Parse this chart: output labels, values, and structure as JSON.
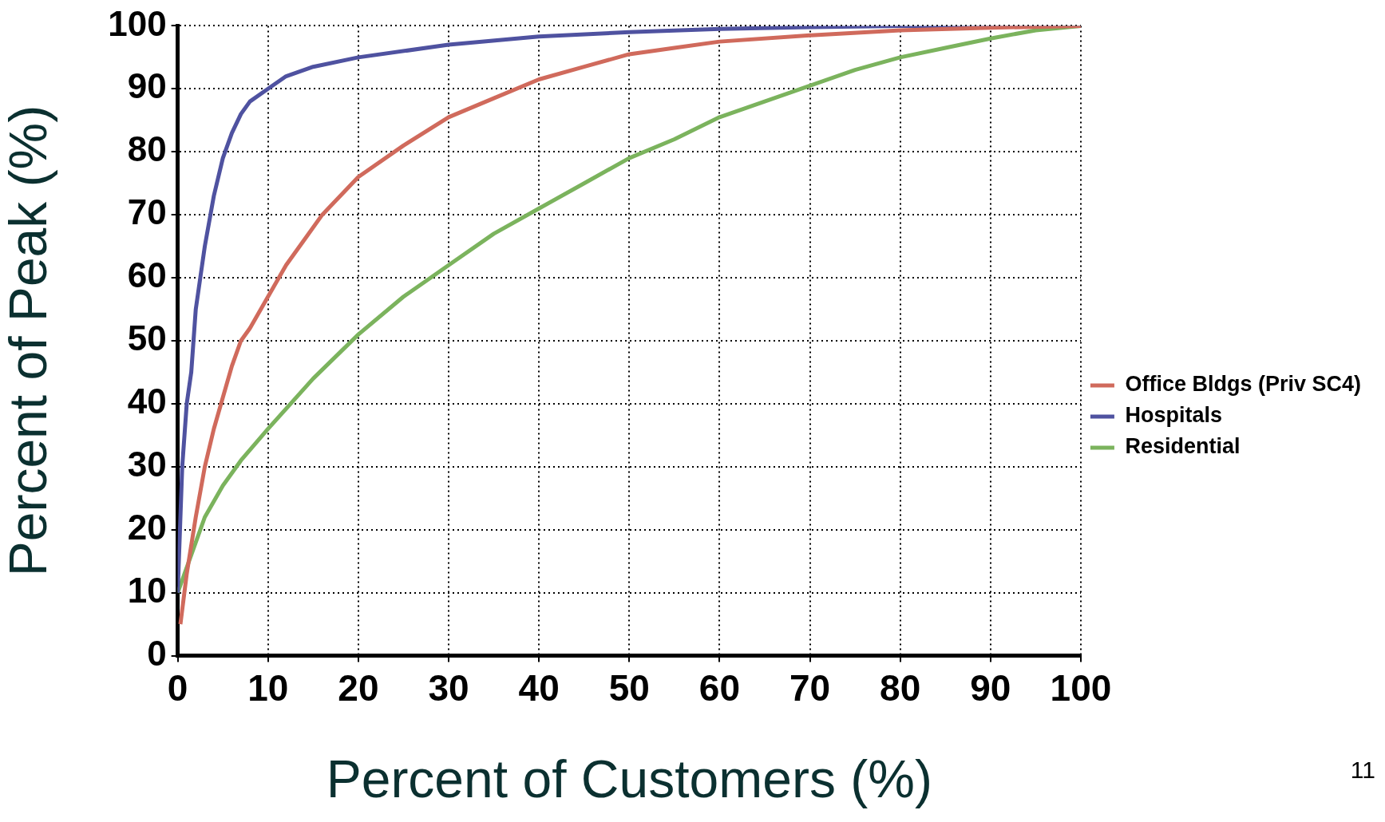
{
  "chart_data": {
    "type": "line",
    "xlabel": "Percent of Customers (%)",
    "ylabel": "Percent of Peak (%)",
    "xlim": [
      0,
      100
    ],
    "ylim": [
      0,
      100
    ],
    "xticks": [
      0,
      10,
      20,
      30,
      40,
      50,
      60,
      70,
      80,
      90,
      100
    ],
    "yticks": [
      0,
      10,
      20,
      30,
      40,
      50,
      60,
      70,
      80,
      90,
      100
    ],
    "grid": true,
    "legend": "right",
    "marker": "none",
    "line_style": "solid",
    "annotations": [
      "11"
    ],
    "series": [
      {
        "name": "Office Bldgs (Priv SC4)",
        "color": "#d06a5c",
        "x": [
          0.3,
          1,
          2,
          3,
          4,
          5,
          6,
          7,
          8,
          10,
          12,
          14,
          16,
          18,
          20,
          25,
          30,
          35,
          40,
          45,
          50,
          55,
          60,
          70,
          80,
          90,
          100
        ],
        "values": [
          5,
          13,
          22,
          30,
          36,
          41,
          46,
          50,
          52,
          57,
          62,
          66,
          70,
          73,
          76,
          81,
          85.5,
          88.5,
          91.5,
          93.5,
          95.5,
          96.5,
          97.5,
          98.5,
          99.3,
          99.7,
          100
        ]
      },
      {
        "name": "Hospitals",
        "color": "#4f52a0",
        "x": [
          0,
          0.5,
          1,
          1.5,
          2,
          3,
          4,
          5,
          6,
          7,
          8,
          10,
          12,
          15,
          20,
          30,
          40,
          50,
          60,
          70,
          80,
          100
        ],
        "values": [
          10,
          30,
          40,
          45,
          55,
          65,
          73,
          79,
          83,
          86,
          88,
          90,
          92,
          93.5,
          95,
          97,
          98.3,
          99,
          99.5,
          99.8,
          100,
          100
        ]
      },
      {
        "name": "Residential",
        "color": "#7bb35d",
        "x": [
          0,
          1,
          2,
          3,
          5,
          7,
          10,
          15,
          20,
          25,
          30,
          35,
          40,
          45,
          50,
          55,
          60,
          65,
          70,
          75,
          80,
          85,
          90,
          95,
          100
        ],
        "values": [
          10,
          14,
          18,
          22,
          27,
          31,
          36,
          44,
          51,
          57,
          62,
          67,
          71,
          75,
          79,
          82,
          85.5,
          88,
          90.5,
          93,
          95,
          96.5,
          98,
          99.3,
          100
        ]
      }
    ]
  }
}
